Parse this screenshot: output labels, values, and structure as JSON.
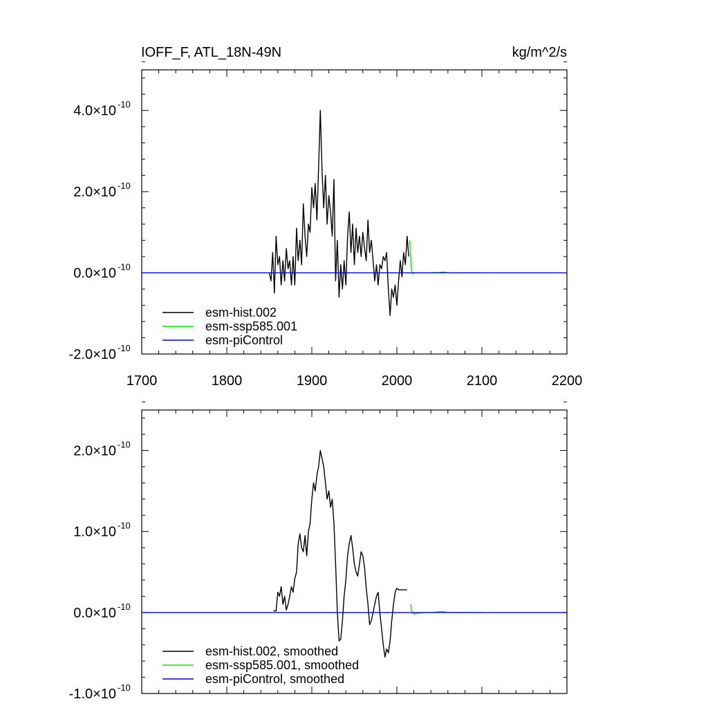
{
  "header": {
    "title": "IOFF_F, ATL_18N-49N",
    "units": "kg/m^2/s"
  },
  "chart_data": [
    {
      "type": "line",
      "panel": "top",
      "xlim": [
        1700,
        2200
      ],
      "ylim": [
        -2e-10,
        5e-10
      ],
      "xticks": [
        1700,
        1800,
        1900,
        2000,
        2100,
        2200
      ],
      "xtick_labels": [
        "1700",
        "1800",
        "1900",
        "2000",
        "2100",
        "2200"
      ],
      "yticks": [
        {
          "value": -2e-10,
          "mantissa": "-2.0×10",
          "exponent": "-10"
        },
        {
          "value": 0.0,
          "mantissa": "0.0×10",
          "exponent": "-10"
        },
        {
          "value": 2e-10,
          "mantissa": "2.0×10",
          "exponent": "-10"
        },
        {
          "value": 4e-10,
          "mantissa": "4.0×10",
          "exponent": "-10"
        }
      ],
      "grid": false,
      "legend_position": "bottom-left",
      "series": [
        {
          "name": "esm-hist.002",
          "color": "#000000",
          "x": [
            1850,
            1852,
            1854,
            1856,
            1858,
            1860,
            1862,
            1864,
            1866,
            1868,
            1870,
            1872,
            1874,
            1876,
            1878,
            1880,
            1882,
            1884,
            1886,
            1888,
            1890,
            1892,
            1894,
            1896,
            1898,
            1900,
            1902,
            1904,
            1906,
            1908,
            1910,
            1912,
            1914,
            1916,
            1918,
            1920,
            1922,
            1924,
            1926,
            1928,
            1930,
            1932,
            1934,
            1936,
            1938,
            1940,
            1942,
            1944,
            1946,
            1948,
            1950,
            1952,
            1954,
            1956,
            1958,
            1960,
            1962,
            1964,
            1966,
            1968,
            1970,
            1972,
            1974,
            1976,
            1978,
            1980,
            1982,
            1984,
            1986,
            1988,
            1990,
            1992,
            1994,
            1996,
            1998,
            2000,
            2002,
            2004,
            2006,
            2008,
            2010,
            2012,
            2014
          ],
          "y": [
            0.0,
            -2e-11,
            5e-11,
            -5e-11,
            9e-11,
            2e-11,
            4e-11,
            -3e-11,
            3e-11,
            -2e-11,
            6e-11,
            1e-11,
            3e-11,
            -3e-11,
            4e-11,
            -3e-11,
            1.1e-10,
            3e-11,
            8e-11,
            2e-11,
            1.7e-10,
            9e-11,
            4e-11,
            1.2e-10,
            1e-10,
            2.1e-10,
            1.6e-10,
            2.2e-10,
            1.3e-10,
            2.6e-10,
            4e-10,
            2.5e-10,
            1.6e-10,
            2.4e-10,
            1.2e-10,
            1.9e-10,
            1.5e-10,
            9e-11,
            2.3e-10,
            -2e-11,
            8e-11,
            -6e-11,
            2e-11,
            -4e-11,
            3e-11,
            -3e-11,
            9e-11,
            1.5e-10,
            5e-11,
            1.2e-10,
            2e-11,
            1.1e-10,
            5e-11,
            9e-11,
            4e-11,
            1e-10,
            6e-11,
            3e-11,
            1.3e-10,
            5e-11,
            8e-11,
            3e-11,
            -2e-11,
            2e-11,
            -3e-11,
            2e-11,
            1e-11,
            4e-11,
            3e-11,
            5e-11,
            -4e-11,
            -1.05e-10,
            -4e-11,
            -6e-11,
            -3e-11,
            -8e-11,
            -2e-11,
            3e-11,
            -1e-11,
            5e-11,
            2e-11,
            9e-11,
            4e-11
          ]
        },
        {
          "name": "esm-ssp585.001",
          "color": "#00ee00",
          "x": [
            2015,
            2016,
            2017,
            2018,
            2019,
            2020,
            2030,
            2040,
            2050,
            2055,
            2060,
            2070,
            2080,
            2090,
            2100
          ],
          "y": [
            8e-11,
            5e-11,
            1e-11,
            0.0,
            -3e-12,
            0.0,
            0.0,
            0.0,
            1e-12,
            2e-12,
            0.0,
            0.0,
            0.0,
            0.0,
            0.0
          ]
        },
        {
          "name": "esm-piControl",
          "color": "#0000dd",
          "x": [
            1700,
            2200
          ],
          "y": [
            0.0,
            0.0
          ]
        }
      ]
    },
    {
      "type": "line",
      "panel": "bottom",
      "xlim": [
        1700,
        2200
      ],
      "ylim": [
        -1e-10,
        2.5e-10
      ],
      "xticks": [
        1700,
        1800,
        1900,
        2000,
        2100,
        2200
      ],
      "yticks": [
        {
          "value": -1e-10,
          "mantissa": "-1.0×10",
          "exponent": "-10"
        },
        {
          "value": 0.0,
          "mantissa": "0.0×10",
          "exponent": "-10"
        },
        {
          "value": 1e-10,
          "mantissa": "1.0×10",
          "exponent": "-10"
        },
        {
          "value": 2e-10,
          "mantissa": "2.0×10",
          "exponent": "-10"
        }
      ],
      "grid": false,
      "legend_position": "bottom-left",
      "series": [
        {
          "name": "esm-hist.002, smoothed",
          "color": "#000000",
          "x": [
            1855,
            1858,
            1860,
            1862,
            1864,
            1866,
            1868,
            1870,
            1872,
            1874,
            1876,
            1878,
            1880,
            1882,
            1884,
            1886,
            1888,
            1890,
            1892,
            1894,
            1896,
            1898,
            1900,
            1902,
            1904,
            1906,
            1908,
            1910,
            1912,
            1914,
            1916,
            1918,
            1920,
            1922,
            1924,
            1926,
            1928,
            1930,
            1932,
            1934,
            1936,
            1938,
            1940,
            1942,
            1944,
            1946,
            1948,
            1950,
            1952,
            1954,
            1956,
            1958,
            1960,
            1962,
            1964,
            1966,
            1968,
            1970,
            1972,
            1974,
            1976,
            1978,
            1980,
            1982,
            1984,
            1986,
            1988,
            1990,
            1992,
            1994,
            1996,
            1998,
            2000,
            2002,
            2004,
            2006,
            2008,
            2010,
            2012
          ],
          "y": [
            2e-12,
            2e-12,
            2.5e-11,
            2e-11,
            3.2e-11,
            1e-11,
            2e-11,
            3e-12,
            1e-11,
            2e-11,
            3.2e-11,
            2.5e-11,
            4.2e-11,
            5e-11,
            8.5e-11,
            9.7e-11,
            8e-11,
            7.5e-11,
            9.5e-11,
            7e-11,
            1e-10,
            1.1e-10,
            1.4e-10,
            1.6e-10,
            1.5e-10,
            1.7e-10,
            1.8e-10,
            2e-10,
            1.9e-10,
            1.8e-10,
            1.6e-10,
            1.4e-10,
            1.5e-10,
            1.3e-10,
            1.4e-10,
            1.1e-10,
            6e-11,
            0.0,
            -3.5e-11,
            -3.3e-11,
            -1e-11,
            2e-11,
            4e-11,
            7e-11,
            8.5e-11,
            9.5e-11,
            8e-11,
            6e-11,
            5e-11,
            4.5e-11,
            6e-11,
            7.5e-11,
            7e-11,
            5.5e-11,
            3e-11,
            1e-11,
            -1.5e-11,
            -1e-11,
            0.0,
            1e-11,
            2e-11,
            2.5e-11,
            0.0,
            -2e-11,
            -4e-11,
            -5.5e-11,
            -4.5e-11,
            -5e-11,
            -3.5e-11,
            -1e-11,
            1e-11,
            2.5e-11,
            3e-11,
            2.8e-11,
            2.8e-11,
            2.8e-11,
            2.8e-11,
            2.8e-11,
            2.8e-11
          ]
        },
        {
          "name": "esm-ssp585.001, smoothed",
          "color": "#00ee00",
          "x": [
            2016,
            2017,
            2018,
            2020,
            2030,
            2040,
            2050,
            2055,
            2060,
            2070,
            2080,
            2090,
            2100
          ],
          "y": [
            1e-11,
            5e-12,
            0.0,
            -2e-12,
            0.0,
            0.0,
            1e-12,
            1e-12,
            0.0,
            0.0,
            0.0,
            0.0,
            0.0
          ]
        },
        {
          "name": "esm-piControl, smoothed",
          "color": "#0000dd",
          "x": [
            1700,
            2200
          ],
          "y": [
            0.0,
            0.0
          ]
        }
      ]
    }
  ]
}
